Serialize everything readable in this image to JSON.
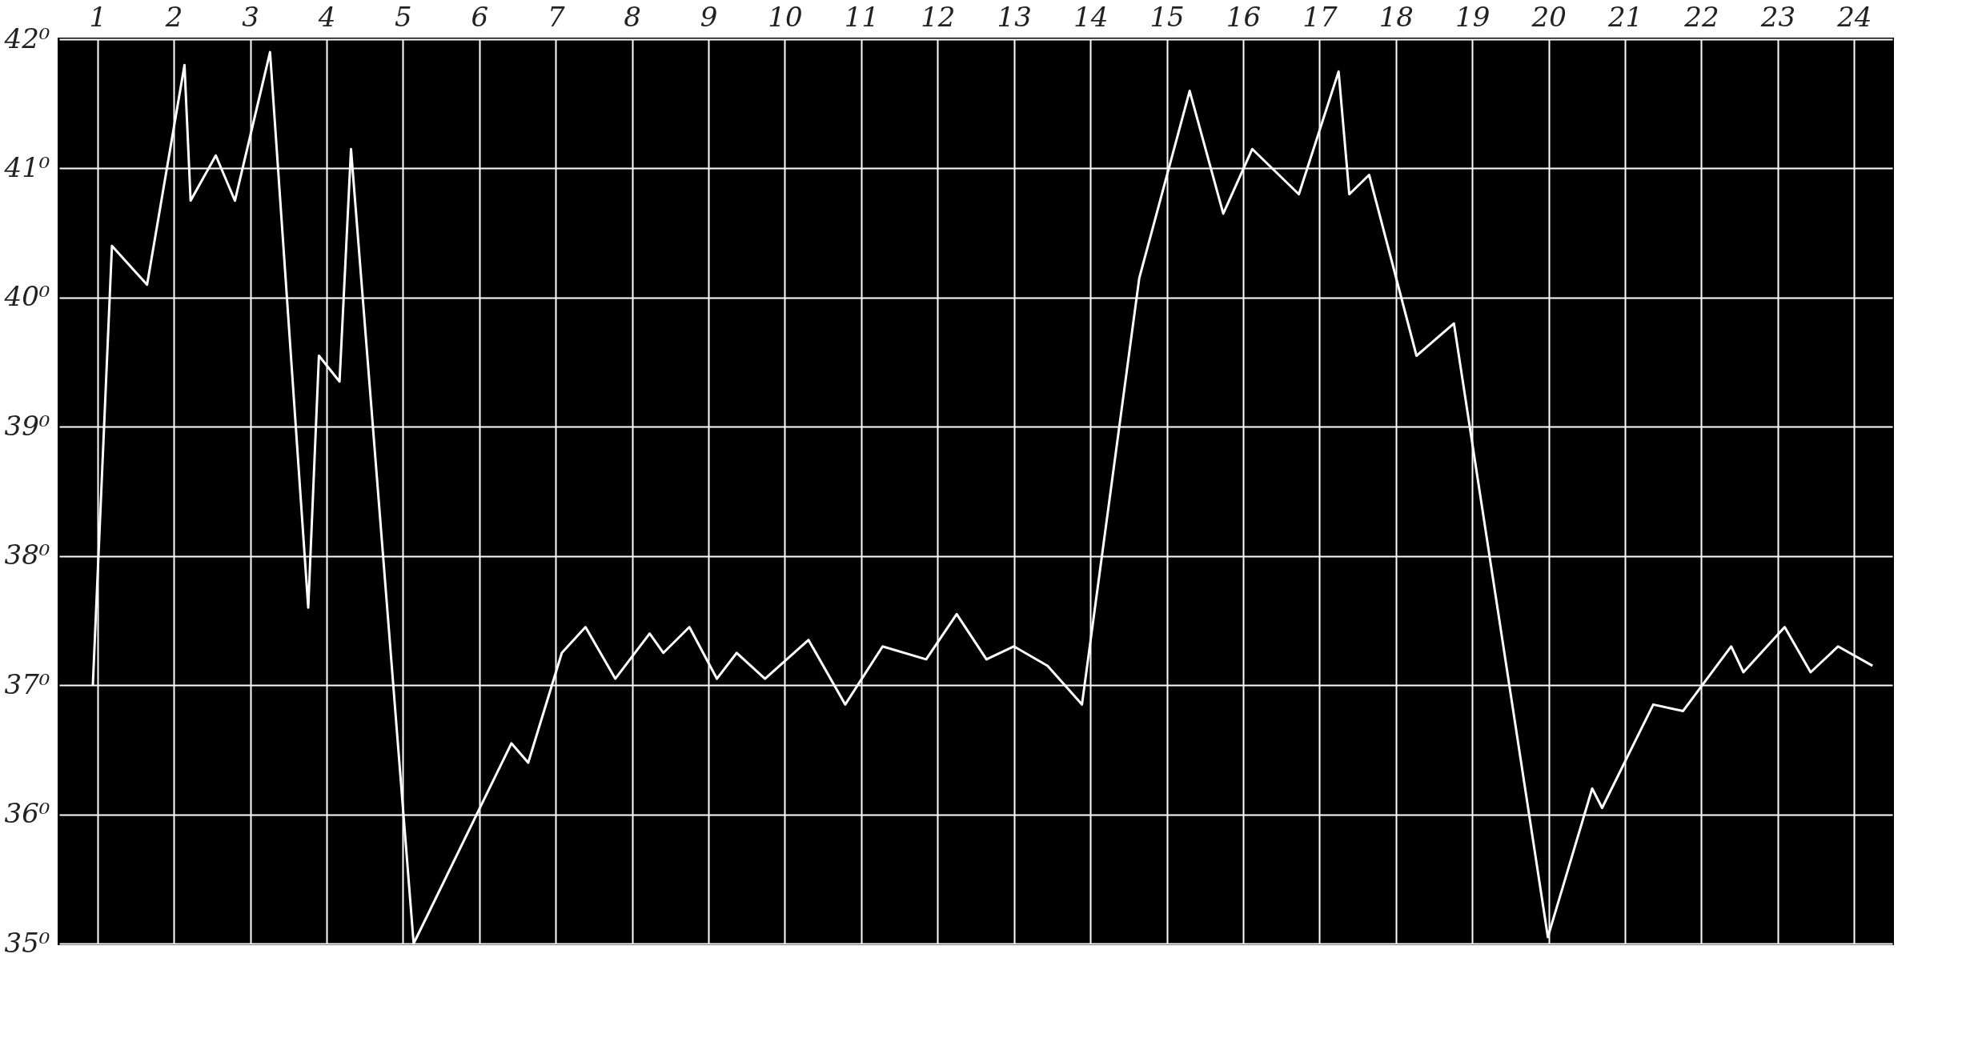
{
  "chart_data": {
    "type": "line",
    "x": [
      0.44,
      0.69,
      1.15,
      1.64,
      1.72,
      2.05,
      2.3,
      2.76,
      3.26,
      3.4,
      3.67,
      3.82,
      4.64,
      5.92,
      6.14,
      6.58,
      6.89,
      7.28,
      7.73,
      7.91,
      8.25,
      8.61,
      8.87,
      9.24,
      9.81,
      10.29,
      10.78,
      11.35,
      11.75,
      12.14,
      12.5,
      12.94,
      13.39,
      14.14,
      14.8,
      15.24,
      15.62,
      16.23,
      16.75,
      16.89,
      17.15,
      17.77,
      18.26,
      19.49,
      20.07,
      20.2,
      20.87,
      21.26,
      21.89,
      22.05,
      22.59,
      22.93,
      23.29,
      23.74
    ],
    "series": [
      {
        "color": "#ffffff",
        "values": [
          37.0,
          40.4,
          40.1,
          41.8,
          40.75,
          41.1,
          40.75,
          41.9,
          37.6,
          39.55,
          39.35,
          41.15,
          35.0,
          36.55,
          36.4,
          37.25,
          37.45,
          37.05,
          37.4,
          37.25,
          37.45,
          37.05,
          37.25,
          37.05,
          37.35,
          36.85,
          37.3,
          37.2,
          37.55,
          37.2,
          37.3,
          37.15,
          36.85,
          40.15,
          41.6,
          40.65,
          41.15,
          40.8,
          41.75,
          40.8,
          40.95,
          39.55,
          39.8,
          35.05,
          36.2,
          36.05,
          36.85,
          36.8,
          37.3,
          37.1,
          37.45,
          37.1,
          37.3,
          37.15
        ]
      }
    ],
    "xlim": [
      0,
      24
    ],
    "xticks": [
      {
        "value": 0.5,
        "label": "1"
      },
      {
        "value": 1.5,
        "label": "2"
      },
      {
        "value": 2.5,
        "label": "3"
      },
      {
        "value": 3.5,
        "label": "4"
      },
      {
        "value": 4.5,
        "label": "5"
      },
      {
        "value": 5.5,
        "label": "6"
      },
      {
        "value": 6.5,
        "label": "7"
      },
      {
        "value": 7.5,
        "label": "8"
      },
      {
        "value": 8.5,
        "label": "9"
      },
      {
        "value": 9.5,
        "label": "10"
      },
      {
        "value": 10.5,
        "label": "11"
      },
      {
        "value": 11.5,
        "label": "12"
      },
      {
        "value": 12.5,
        "label": "13"
      },
      {
        "value": 13.5,
        "label": "14"
      },
      {
        "value": 14.5,
        "label": "15"
      },
      {
        "value": 15.5,
        "label": "16"
      },
      {
        "value": 16.5,
        "label": "17"
      },
      {
        "value": 17.5,
        "label": "18"
      },
      {
        "value": 18.5,
        "label": "19"
      },
      {
        "value": 19.5,
        "label": "20"
      },
      {
        "value": 20.5,
        "label": "21"
      },
      {
        "value": 21.5,
        "label": "22"
      },
      {
        "value": 22.5,
        "label": "23"
      },
      {
        "value": 23.5,
        "label": "24"
      }
    ],
    "ylim": [
      35,
      42
    ],
    "yticks": [
      {
        "value": 35,
        "label": "35⁰"
      },
      {
        "value": 36,
        "label": "36⁰"
      },
      {
        "value": 37,
        "label": "37⁰"
      },
      {
        "value": 38,
        "label": "38⁰"
      },
      {
        "value": 39,
        "label": "39⁰"
      },
      {
        "value": 40,
        "label": "40⁰"
      },
      {
        "value": 41,
        "label": "41⁰"
      },
      {
        "value": 42,
        "label": "42⁰"
      }
    ],
    "grid": true,
    "marker": "none",
    "line_style": "solid"
  }
}
